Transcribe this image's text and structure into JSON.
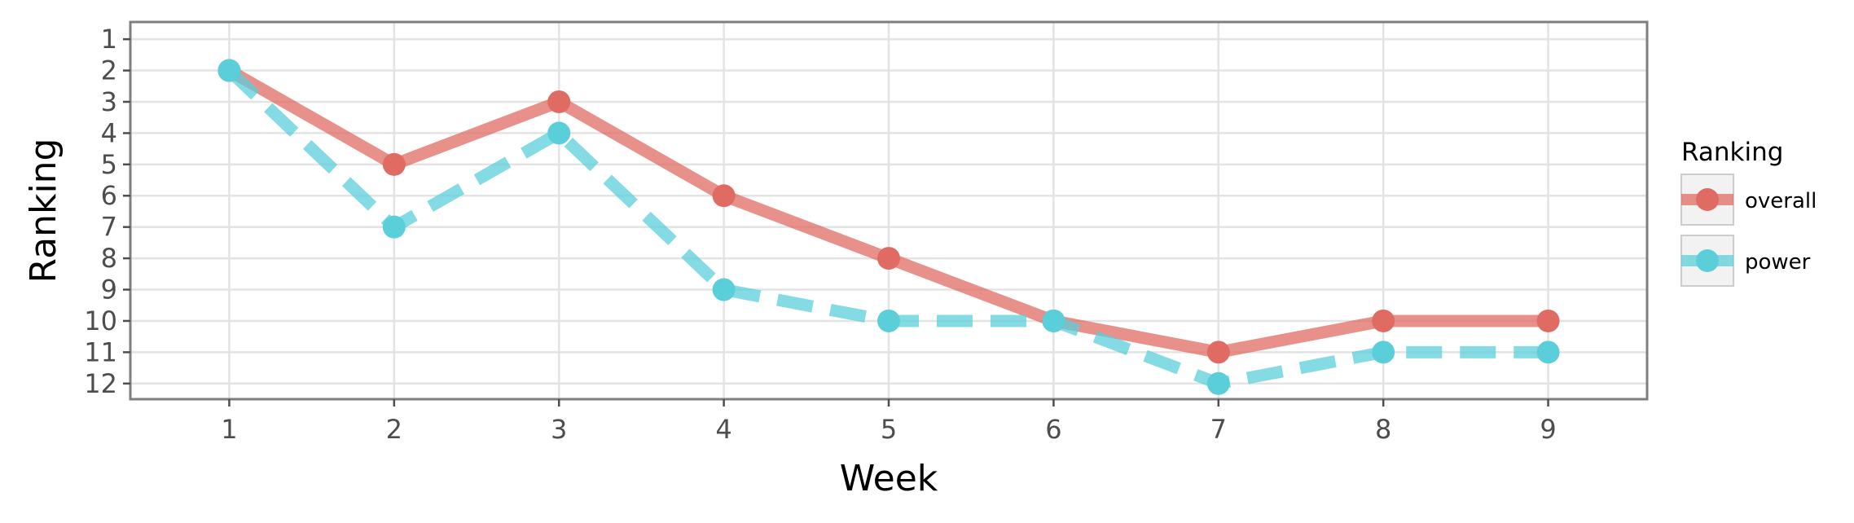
{
  "chart_data": {
    "type": "line",
    "xlabel": "Week",
    "ylabel": "Ranking",
    "x": [
      1,
      2,
      3,
      4,
      5,
      6,
      7,
      8,
      9
    ],
    "x_ticks": [
      "1",
      "2",
      "3",
      "4",
      "5",
      "6",
      "7",
      "8",
      "9"
    ],
    "y_ticks": [
      "1",
      "2",
      "3",
      "4",
      "5",
      "6",
      "7",
      "8",
      "9",
      "10",
      "11",
      "12"
    ],
    "xlim": [
      0.4,
      9.6
    ],
    "ylim": [
      12.5,
      0.45
    ],
    "y_reversed": true,
    "grid": true,
    "legend": {
      "title": "Ranking",
      "position": "right"
    },
    "series": [
      {
        "name": "overall",
        "values": [
          2,
          5,
          3,
          6,
          8,
          10,
          11,
          10,
          10
        ],
        "color": "#e06b63",
        "line_style": "solid"
      },
      {
        "name": "power",
        "values": [
          2,
          7,
          4,
          9,
          10,
          10,
          12,
          11,
          11
        ],
        "color": "#5bcfd9",
        "line_style": "dashed"
      }
    ]
  }
}
